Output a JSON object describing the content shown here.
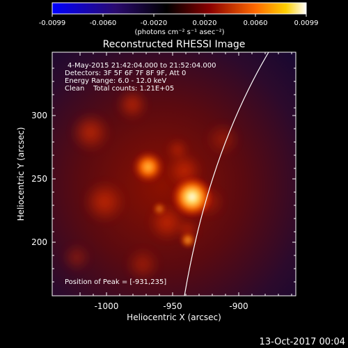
{
  "colorbar": {
    "tick_labels": [
      "-0.0099",
      "-0.0060",
      "-0.0020",
      "0.0020",
      "0.0060",
      "0.0099"
    ],
    "unit_label": "(photons cm⁻² s⁻¹ asec⁻²)"
  },
  "title": "Reconstructed RHESSI Image",
  "info": {
    "time_range": "4-May-2015 21:42:04.000 to 21:52:04.000",
    "detectors": "Detectors: 3F 5F 6F 7F 8F 9F, Att 0",
    "energy": "Energy Range: 6.0 - 12.0 keV",
    "clean": "Clean    Total counts: 1.21E+05"
  },
  "peak_label": "Position of Peak = [-931,235]",
  "axes": {
    "xlabel": "Heliocentric X (arcsec)",
    "ylabel": "Heliocentric Y (arcsec)",
    "x_ticks": [
      "-1000",
      "-950",
      "-900"
    ],
    "y_ticks": [
      "300",
      "250",
      "200"
    ]
  },
  "footer_date": "13-Oct-2017 00:04"
}
